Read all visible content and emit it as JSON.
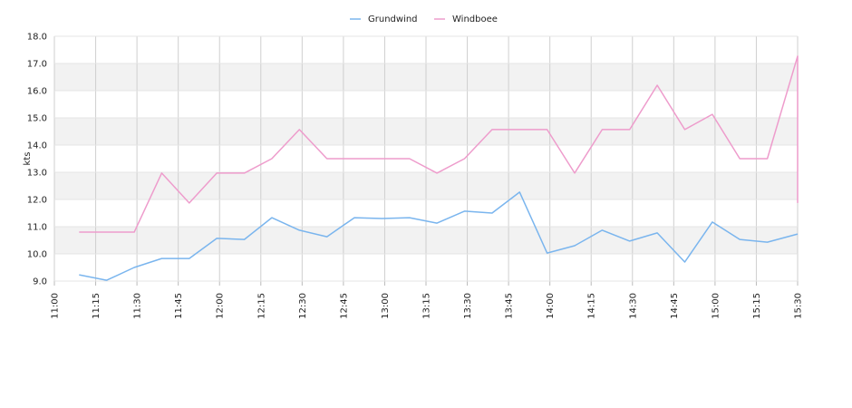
{
  "chart_data": {
    "type": "line",
    "title": "",
    "xlabel": "",
    "ylabel": "kts",
    "ylim": [
      9.0,
      18.0
    ],
    "xlim": [
      "11:00",
      "15:30"
    ],
    "grid": true,
    "legend_position": "top-center",
    "y_ticks": [
      "9.0",
      "10.0",
      "11.0",
      "12.0",
      "13.0",
      "14.0",
      "15.0",
      "16.0",
      "17.0",
      "18.0"
    ],
    "x_ticks": [
      "11:00",
      "11:15",
      "11:30",
      "11:45",
      "12:00",
      "12:15",
      "12:30",
      "12:45",
      "13:00",
      "13:15",
      "13:30",
      "13:45",
      "14:00",
      "14:15",
      "14:30",
      "14:45",
      "15:00",
      "15:15",
      "15:30"
    ],
    "series": [
      {
        "name": "Grundwind",
        "color": "#7ab5ee",
        "x": [
          "11:09",
          "11:19",
          "11:29",
          "11:39",
          "11:49",
          "11:59",
          "12:09",
          "12:19",
          "12:29",
          "12:39",
          "12:49",
          "12:59",
          "13:09",
          "13:19",
          "13:29",
          "13:39",
          "13:49",
          "13:59",
          "14:09",
          "14:19",
          "14:29",
          "14:39",
          "14:49",
          "14:59",
          "15:09",
          "15:19",
          "15:30"
        ],
        "values": [
          9.23,
          9.03,
          9.5,
          9.83,
          9.83,
          10.57,
          10.53,
          11.33,
          10.87,
          10.63,
          11.33,
          11.3,
          11.33,
          11.13,
          11.57,
          11.5,
          12.27,
          10.03,
          10.3,
          10.87,
          10.47,
          10.77,
          9.7,
          11.17,
          10.53,
          10.43,
          10.73
        ]
      },
      {
        "name": "Windboee",
        "color": "#ee9ccc",
        "x": [
          "11:09",
          "11:19",
          "11:29",
          "11:39",
          "11:49",
          "11:59",
          "12:09",
          "12:19",
          "12:29",
          "12:39",
          "12:49",
          "12:59",
          "13:09",
          "13:19",
          "13:29",
          "13:39",
          "13:49",
          "13:59",
          "14:09",
          "14:19",
          "14:29",
          "14:39",
          "14:49",
          "14:59",
          "15:09",
          "15:19",
          "15:30",
          "15:30"
        ],
        "values": [
          10.8,
          10.8,
          10.8,
          12.97,
          11.87,
          12.97,
          12.97,
          13.5,
          14.57,
          13.5,
          13.5,
          13.5,
          13.5,
          12.97,
          13.5,
          14.57,
          14.57,
          14.57,
          12.97,
          14.57,
          14.57,
          16.2,
          14.57,
          15.13,
          13.5,
          13.5,
          17.27,
          11.87
        ]
      }
    ]
  }
}
